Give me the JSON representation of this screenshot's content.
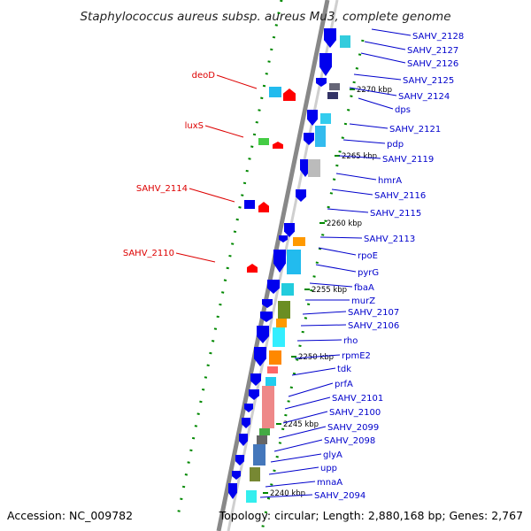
{
  "title": "Staphylococcus aureus subsp. aureus Mu3, complete genome",
  "accession": "Accession: NC_009782",
  "summary": "Topology: circular; Length: 2,880,168 bp; Genes: 2,767",
  "colors": {
    "right_labels": "#0000cc",
    "left_labels": "#dd0000",
    "arrows_blue": "#0000ee",
    "arrows_red": "#ff0000",
    "backbone": "#888888",
    "tick_marks": "#008800"
  },
  "right_labels": [
    "SAHV_2128",
    "SAHV_2127",
    "SAHV_2126",
    "SAHV_2125",
    "SAHV_2124",
    "dps",
    "SAHV_2121",
    "pdp",
    "SAHV_2119",
    "hmrA",
    "SAHV_2116",
    "SAHV_2115",
    "SAHV_2113",
    "rpoE",
    "pyrG",
    "fbaA",
    "murZ",
    "SAHV_2107",
    "SAHV_2106",
    "rho",
    "rpmE2",
    "tdk",
    "prfA",
    "SAHV_2101",
    "SAHV_2100",
    "SAHV_2099",
    "SAHV_2098",
    "glyA",
    "upp",
    "mnaA",
    "SAHV_2094"
  ],
  "left_labels": [
    "deoD",
    "luxS",
    "SAHV_2114",
    "SAHV_2110"
  ],
  "ticks": [
    "2270 kbp",
    "2265 kbp",
    "2260 kbp",
    "2255 kbp",
    "2250 kbp",
    "2245 kbp",
    "2240 kbp"
  ]
}
